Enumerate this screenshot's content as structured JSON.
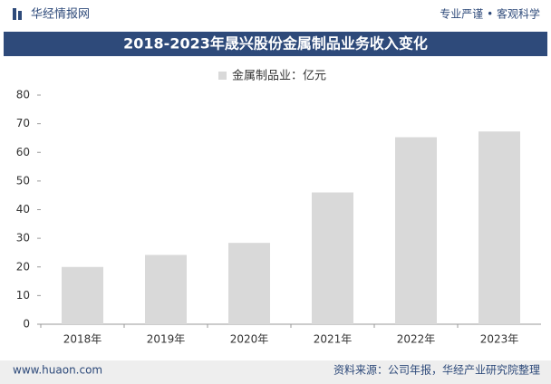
{
  "header": {
    "brand": "华经情报网",
    "slogan": "专业严谨 • 客观科学"
  },
  "chart_data": {
    "type": "bar",
    "title": "2018-2023年晟兴股份金属制品业务收入变化",
    "categories": [
      "2018年",
      "2019年",
      "2020年",
      "2021年",
      "2022年",
      "2023年"
    ],
    "series": [
      {
        "name": "金属制品业：亿元",
        "color": "#d9d9d9",
        "values": [
          20,
          24.2,
          28.4,
          46,
          65.3,
          67.3
        ]
      }
    ],
    "ylim": [
      0,
      80
    ],
    "yticks": [
      0,
      10,
      20,
      30,
      40,
      50,
      60,
      70,
      80
    ],
    "grid": false
  },
  "footer": {
    "website": "www.huaon.com",
    "source": "资料来源：公司年报，华经产业研究院整理"
  }
}
